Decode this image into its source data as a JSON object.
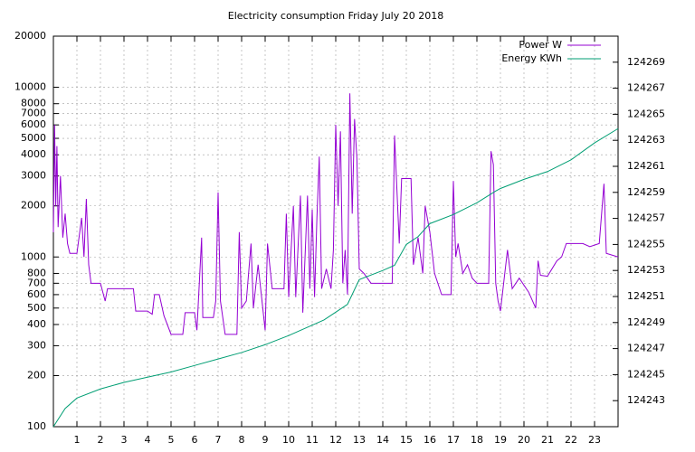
{
  "chart_data": {
    "type": "line",
    "title": "Electricity consumption Friday July 20 2018",
    "xlim": [
      0,
      24
    ],
    "xticks": [
      1,
      2,
      3,
      4,
      5,
      6,
      7,
      8,
      9,
      10,
      11,
      12,
      13,
      14,
      15,
      16,
      17,
      18,
      19,
      20,
      21,
      22,
      23
    ],
    "ylim": [
      100,
      20000
    ],
    "log_y": true,
    "yticks": [
      100,
      200,
      300,
      400,
      500,
      600,
      700,
      800,
      1000,
      2000,
      3000,
      4000,
      5000,
      6000,
      7000,
      8000,
      10000,
      20000
    ],
    "y2lim": [
      124241,
      124271
    ],
    "y2ticks": [
      124243,
      124245,
      124247,
      124249,
      124251,
      124253,
      124255,
      124257,
      124259,
      124261,
      124263,
      124265,
      124267,
      124269
    ],
    "grid": true,
    "legend": "top-right",
    "series": [
      {
        "name": "Power W",
        "color": "#9400d3",
        "x": [
          0,
          0.05,
          0.1,
          0.15,
          0.2,
          0.3,
          0.4,
          0.5,
          0.6,
          0.7,
          1.0,
          1.2,
          1.3,
          1.4,
          1.5,
          1.6,
          2.0,
          2.2,
          2.3,
          3.0,
          3.4,
          3.5,
          4.0,
          4.2,
          4.3,
          4.5,
          4.7,
          5.0,
          5.5,
          5.6,
          6.0,
          6.1,
          6.3,
          6.35,
          6.8,
          6.9,
          7.0,
          7.1,
          7.3,
          7.8,
          7.9,
          8.0,
          8.2,
          8.4,
          8.5,
          8.7,
          9.0,
          9.1,
          9.3,
          9.8,
          9.9,
          10.0,
          10.2,
          10.3,
          10.5,
          10.6,
          10.8,
          10.9,
          11.0,
          11.1,
          11.2,
          11.3,
          11.4,
          11.6,
          11.8,
          11.9,
          12.0,
          12.1,
          12.2,
          12.3,
          12.4,
          12.5,
          12.6,
          12.7,
          12.8,
          12.9,
          13.0,
          13.2,
          13.5,
          14.0,
          14.4,
          14.5,
          14.6,
          14.7,
          14.8,
          15.2,
          15.3,
          15.5,
          15.7,
          15.8,
          16.0,
          16.2,
          16.5,
          16.9,
          17.0,
          17.1,
          17.2,
          17.4,
          17.6,
          17.8,
          18.0,
          18.5,
          18.6,
          18.7,
          18.8,
          18.9,
          19.0,
          19.3,
          19.5,
          19.8,
          20.2,
          20.5,
          20.6,
          20.7,
          21.0,
          21.4,
          21.6,
          21.8,
          22.5,
          22.8,
          23.2,
          23.4,
          23.5,
          24
        ],
        "values": [
          1400,
          6000,
          2000,
          4500,
          1500,
          3000,
          1300,
          1800,
          1200,
          1050,
          1050,
          1700,
          1000,
          2200,
          900,
          700,
          700,
          550,
          650,
          650,
          650,
          480,
          480,
          460,
          600,
          600,
          450,
          350,
          350,
          470,
          470,
          370,
          1300,
          440,
          440,
          550,
          2400,
          550,
          350,
          350,
          1400,
          500,
          550,
          1200,
          500,
          900,
          370,
          1200,
          650,
          650,
          1800,
          580,
          2000,
          580,
          2300,
          470,
          2300,
          650,
          1900,
          580,
          1700,
          3900,
          650,
          850,
          650,
          1100,
          6000,
          2000,
          5500,
          700,
          1100,
          600,
          9200,
          1800,
          6500,
          3800,
          850,
          800,
          700,
          700,
          700,
          5200,
          2500,
          1200,
          2900,
          2900,
          900,
          1300,
          800,
          2000,
          1400,
          800,
          600,
          600,
          2800,
          1000,
          1200,
          800,
          900,
          750,
          700,
          700,
          4200,
          3500,
          700,
          550,
          480,
          1100,
          650,
          750,
          620,
          500,
          950,
          780,
          770,
          950,
          1000,
          1200,
          1200,
          1150,
          1200,
          2700,
          1050,
          1000
        ]
      },
      {
        "name": "Energy KWh",
        "color": "#009e73",
        "axis": "y2",
        "x": [
          0,
          0.5,
          1,
          2,
          3,
          4,
          5,
          6,
          7,
          8,
          9,
          10,
          11,
          11.5,
          12,
          12.5,
          13,
          14,
          14.5,
          15,
          15.5,
          16,
          17,
          18,
          18.8,
          19,
          20,
          21,
          22,
          23,
          24
        ],
        "values": [
          124241,
          124242.4,
          124243.2,
          124243.9,
          124244.4,
          124244.8,
          124245.2,
          124245.7,
          124246.2,
          124246.7,
          124247.3,
          124248,
          124248.8,
          124249.2,
          124249.8,
          124250.4,
          124252.3,
          124253,
          124253.4,
          124255,
          124255.6,
          124256.6,
          124257.3,
          124258.2,
          124259.1,
          124259.3,
          124260,
          124260.6,
          124261.5,
          124262.8,
          124263.9
        ]
      }
    ]
  }
}
